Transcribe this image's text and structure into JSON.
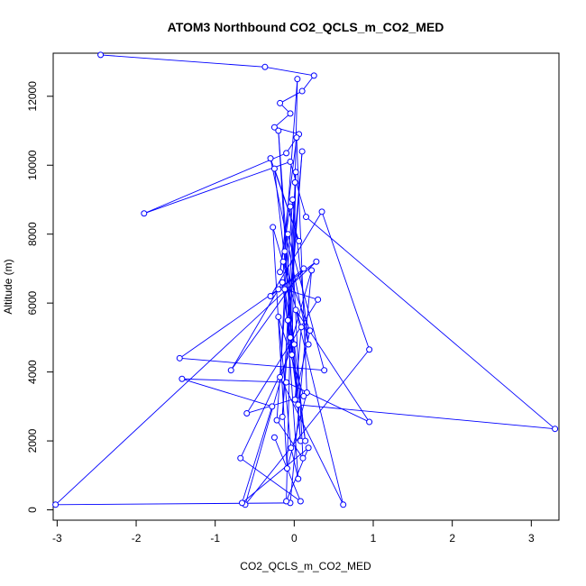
{
  "chart_data": {
    "type": "scatter",
    "title": "ATOM3 Northbound CO2_QCLS_m_CO2_MED",
    "xlabel": "CO2_QCLS_m_CO2_MED",
    "ylabel": "Altitude (m)",
    "xlim": [
      -3.05,
      3.35
    ],
    "ylim": [
      -300,
      13250
    ],
    "xticks": [
      -3,
      -2,
      -1,
      0,
      1,
      2,
      3
    ],
    "yticks": [
      0,
      2000,
      4000,
      6000,
      8000,
      10000,
      12000
    ],
    "grid": false,
    "legend": "none",
    "colors": {
      "series": "#0000ff",
      "axes": "#000000"
    },
    "series": [
      {
        "style": "points-and-lines",
        "x": [
          -2.45,
          -0.37,
          0.25,
          0.1,
          -0.18,
          -0.05,
          -0.25,
          0.06,
          -0.1,
          -1.9,
          -0.05,
          0.15,
          3.3,
          0.05,
          -0.15,
          -0.8,
          0.12,
          -0.3,
          0.35,
          0.95,
          -0.62,
          0.22,
          -0.05,
          -3.02,
          0.28,
          -0.2,
          -1.45,
          0.38,
          -0.08,
          -0.18,
          0.62,
          0.02,
          0.95,
          -0.1,
          -1.42,
          -0.28,
          -0.66,
          0.18,
          -0.1,
          -0.05,
          0.01,
          0.04,
          -0.12,
          0.08,
          -0.2,
          -0.03,
          0.02,
          -0.15,
          0.1,
          -0.08,
          0.14,
          -0.25,
          0.06,
          -0.3,
          0.18,
          -0.02,
          -0.22,
          0.11,
          -0.05,
          -0.18,
          0.03,
          0.16,
          -0.09,
          -0.27,
          0.09,
          0.01,
          0.2,
          -0.14,
          0.05,
          -0.04,
          -0.2,
          0.12,
          -0.6,
          0.3,
          -0.12,
          0.0,
          -0.68,
          0.08,
          -0.25
        ],
        "y": [
          13200,
          12850,
          12600,
          12150,
          11800,
          11500,
          11100,
          10900,
          10350,
          8600,
          10100,
          8500,
          2350,
          3050,
          6600,
          4050,
          7000,
          6200,
          8650,
          4650,
          150,
          6950,
          200,
          150,
          7200,
          6400,
          4400,
          4050,
          8000,
          3850,
          150,
          5800,
          2550,
          3700,
          3800,
          3000,
          200,
          1800,
          250,
          5000,
          9500,
          12500,
          7500,
          2000,
          11000,
          4500,
          9800,
          2700,
          10400,
          5500,
          2000,
          9900,
          7800,
          10200,
          4800,
          9000,
          2600,
          1500,
          8800,
          6900,
          10800,
          3400,
          1200,
          8200,
          5300,
          3200,
          5200,
          7200,
          900,
          1800,
          5600,
          3300,
          2800,
          6100,
          6400,
          4800,
          1500,
          250,
          2100
        ]
      }
    ]
  }
}
